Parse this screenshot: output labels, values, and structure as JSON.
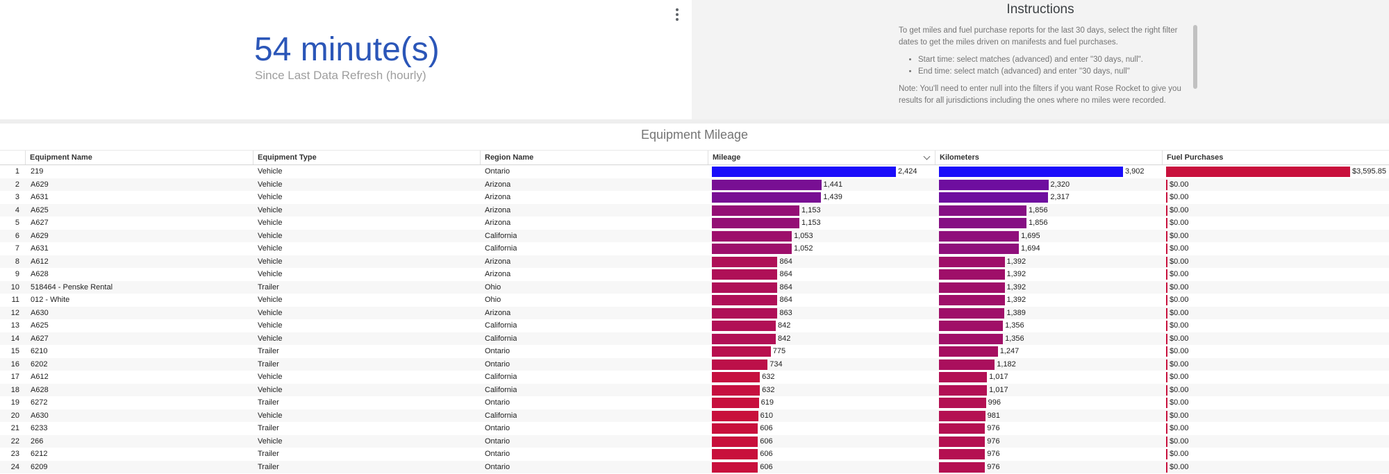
{
  "scorecard": {
    "value": "54 minute(s)",
    "label": "Since Last Data Refresh (hourly)"
  },
  "instructions": {
    "title": "Instructions",
    "intro": "To get miles and fuel purchase reports for the last 30 days, select the right filter dates to get the miles driven on manifests and fuel purchases.",
    "bullets": [
      "Start time: select matches (advanced) and enter \"30 days, null\".",
      "End time: select match (advanced) and enter \"30 days, null\""
    ],
    "note": "Note: You'll need to enter null into the filters if you want Rose Rocket to give you results for all jurisdictions including the ones where no miles were recorded."
  },
  "table": {
    "title": "Equipment Mileage",
    "columns": {
      "equipment_name": "Equipment Name",
      "equipment_type": "Equipment Type",
      "region_name": "Region Name",
      "mileage": "Mileage",
      "kilometers": "Kilometers",
      "fuel_purchases": "Fuel Purchases"
    },
    "sort": {
      "column": "Mileage",
      "direction": "descending"
    },
    "max_mileage": 2424,
    "max_kilometers": 3902,
    "max_fuel": 3595.85,
    "colors": {
      "high": "#1a0dfa",
      "low": "#c8103c",
      "fuel": "#c8103c"
    },
    "rows": [
      {
        "n": "1",
        "name": "219",
        "type": "Vehicle",
        "region": "Ontario",
        "mileage": 2424,
        "mileage_label": "2,424",
        "km": 3902,
        "km_label": "3,902",
        "fuel": 3595.85,
        "fuel_label": "$3,595.85"
      },
      {
        "n": "2",
        "name": "A629",
        "type": "Vehicle",
        "region": "Arizona",
        "mileage": 1441,
        "mileage_label": "1,441",
        "km": 2320,
        "km_label": "2,320",
        "fuel": 0,
        "fuel_label": "$0.00"
      },
      {
        "n": "3",
        "name": "A631",
        "type": "Vehicle",
        "region": "Arizona",
        "mileage": 1439,
        "mileage_label": "1,439",
        "km": 2317,
        "km_label": "2,317",
        "fuel": 0,
        "fuel_label": "$0.00"
      },
      {
        "n": "4",
        "name": "A625",
        "type": "Vehicle",
        "region": "Arizona",
        "mileage": 1153,
        "mileage_label": "1,153",
        "km": 1856,
        "km_label": "1,856",
        "fuel": 0,
        "fuel_label": "$0.00"
      },
      {
        "n": "5",
        "name": "A627",
        "type": "Vehicle",
        "region": "Arizona",
        "mileage": 1153,
        "mileage_label": "1,153",
        "km": 1856,
        "km_label": "1,856",
        "fuel": 0,
        "fuel_label": "$0.00"
      },
      {
        "n": "6",
        "name": "A629",
        "type": "Vehicle",
        "region": "California",
        "mileage": 1053,
        "mileage_label": "1,053",
        "km": 1695,
        "km_label": "1,695",
        "fuel": 0,
        "fuel_label": "$0.00"
      },
      {
        "n": "7",
        "name": "A631",
        "type": "Vehicle",
        "region": "California",
        "mileage": 1052,
        "mileage_label": "1,052",
        "km": 1694,
        "km_label": "1,694",
        "fuel": 0,
        "fuel_label": "$0.00"
      },
      {
        "n": "8",
        "name": "A612",
        "type": "Vehicle",
        "region": "Arizona",
        "mileage": 864,
        "mileage_label": "864",
        "km": 1392,
        "km_label": "1,392",
        "fuel": 0,
        "fuel_label": "$0.00"
      },
      {
        "n": "9",
        "name": "A628",
        "type": "Vehicle",
        "region": "Arizona",
        "mileage": 864,
        "mileage_label": "864",
        "km": 1392,
        "km_label": "1,392",
        "fuel": 0,
        "fuel_label": "$0.00"
      },
      {
        "n": "10",
        "name": "518464 - Penske Rental",
        "type": "Trailer",
        "region": "Ohio",
        "mileage": 864,
        "mileage_label": "864",
        "km": 1392,
        "km_label": "1,392",
        "fuel": 0,
        "fuel_label": "$0.00"
      },
      {
        "n": "11",
        "name": "012 - White",
        "type": "Vehicle",
        "region": "Ohio",
        "mileage": 864,
        "mileage_label": "864",
        "km": 1392,
        "km_label": "1,392",
        "fuel": 0,
        "fuel_label": "$0.00"
      },
      {
        "n": "12",
        "name": "A630",
        "type": "Vehicle",
        "region": "Arizona",
        "mileage": 863,
        "mileage_label": "863",
        "km": 1389,
        "km_label": "1,389",
        "fuel": 0,
        "fuel_label": "$0.00"
      },
      {
        "n": "13",
        "name": "A625",
        "type": "Vehicle",
        "region": "California",
        "mileage": 842,
        "mileage_label": "842",
        "km": 1356,
        "km_label": "1,356",
        "fuel": 0,
        "fuel_label": "$0.00"
      },
      {
        "n": "14",
        "name": "A627",
        "type": "Vehicle",
        "region": "California",
        "mileage": 842,
        "mileage_label": "842",
        "km": 1356,
        "km_label": "1,356",
        "fuel": 0,
        "fuel_label": "$0.00"
      },
      {
        "n": "15",
        "name": "6210",
        "type": "Trailer",
        "region": "Ontario",
        "mileage": 775,
        "mileage_label": "775",
        "km": 1247,
        "km_label": "1,247",
        "fuel": 0,
        "fuel_label": "$0.00"
      },
      {
        "n": "16",
        "name": "6202",
        "type": "Trailer",
        "region": "Ontario",
        "mileage": 734,
        "mileage_label": "734",
        "km": 1182,
        "km_label": "1,182",
        "fuel": 0,
        "fuel_label": "$0.00"
      },
      {
        "n": "17",
        "name": "A612",
        "type": "Vehicle",
        "region": "California",
        "mileage": 632,
        "mileage_label": "632",
        "km": 1017,
        "km_label": "1,017",
        "fuel": 0,
        "fuel_label": "$0.00"
      },
      {
        "n": "18",
        "name": "A628",
        "type": "Vehicle",
        "region": "California",
        "mileage": 632,
        "mileage_label": "632",
        "km": 1017,
        "km_label": "1,017",
        "fuel": 0,
        "fuel_label": "$0.00"
      },
      {
        "n": "19",
        "name": "6272",
        "type": "Trailer",
        "region": "Ontario",
        "mileage": 619,
        "mileage_label": "619",
        "km": 996,
        "km_label": "996",
        "fuel": 0,
        "fuel_label": "$0.00"
      },
      {
        "n": "20",
        "name": "A630",
        "type": "Vehicle",
        "region": "California",
        "mileage": 610,
        "mileage_label": "610",
        "km": 981,
        "km_label": "981",
        "fuel": 0,
        "fuel_label": "$0.00"
      },
      {
        "n": "21",
        "name": "6233",
        "type": "Trailer",
        "region": "Ontario",
        "mileage": 606,
        "mileage_label": "606",
        "km": 976,
        "km_label": "976",
        "fuel": 0,
        "fuel_label": "$0.00"
      },
      {
        "n": "22",
        "name": "266",
        "type": "Vehicle",
        "region": "Ontario",
        "mileage": 606,
        "mileage_label": "606",
        "km": 976,
        "km_label": "976",
        "fuel": 0,
        "fuel_label": "$0.00"
      },
      {
        "n": "23",
        "name": "6212",
        "type": "Trailer",
        "region": "Ontario",
        "mileage": 606,
        "mileage_label": "606",
        "km": 976,
        "km_label": "976",
        "fuel": 0,
        "fuel_label": "$0.00"
      },
      {
        "n": "24",
        "name": "6209",
        "type": "Trailer",
        "region": "Ontario",
        "mileage": 606,
        "mileage_label": "606",
        "km": 976,
        "km_label": "976",
        "fuel": 0,
        "fuel_label": "$0.00"
      }
    ]
  }
}
